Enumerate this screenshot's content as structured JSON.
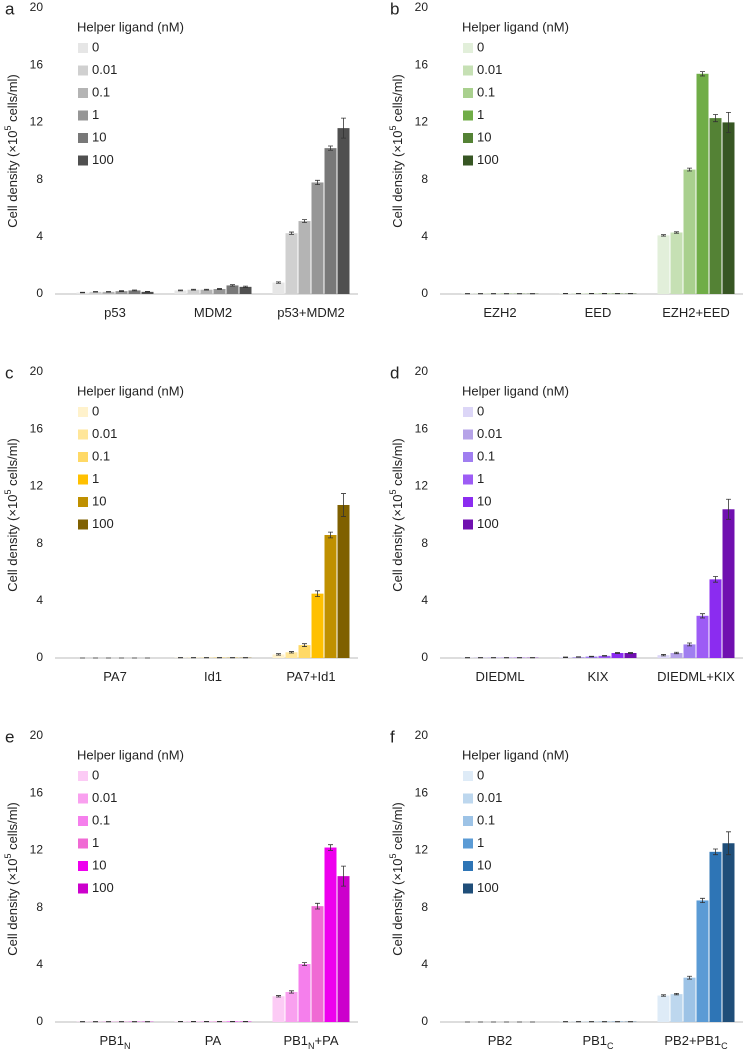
{
  "chart_data": [
    {
      "type": "bar",
      "label": "a",
      "y_label": [
        "Cell density (×10",
        "5",
        " cells/ml)"
      ],
      "legend_title": "Helper ligand (nM)",
      "categories": [
        [
          "p53"
        ],
        [
          "MDM2"
        ],
        [
          "p53+MDM2"
        ]
      ],
      "ylim": [
        0,
        20
      ],
      "yticks": [
        0,
        4,
        8,
        12,
        16,
        20
      ],
      "series": [
        {
          "name": "0",
          "color": "#e6e6e6",
          "values": [
            0.1,
            0.25,
            0.8
          ],
          "errors": [
            0.02,
            0.03,
            0.05
          ]
        },
        {
          "name": "0.01",
          "color": "#d0d0d0",
          "values": [
            0.15,
            0.3,
            4.25
          ],
          "errors": [
            0.02,
            0.03,
            0.08
          ]
        },
        {
          "name": "0.1",
          "color": "#b4b4b4",
          "values": [
            0.15,
            0.3,
            5.1
          ],
          "errors": [
            0.02,
            0.03,
            0.1
          ]
        },
        {
          "name": "1",
          "color": "#969696",
          "values": [
            0.2,
            0.35,
            7.8
          ],
          "errors": [
            0.03,
            0.03,
            0.15
          ]
        },
        {
          "name": "10",
          "color": "#787878",
          "values": [
            0.25,
            0.6,
            10.2
          ],
          "errors": [
            0.03,
            0.05,
            0.15
          ]
        },
        {
          "name": "100",
          "color": "#505050",
          "values": [
            0.15,
            0.5,
            11.6
          ],
          "errors": [
            0.03,
            0.05,
            0.7
          ]
        }
      ]
    },
    {
      "type": "bar",
      "label": "b",
      "y_label": [
        "Cell density (×10",
        "5",
        " cells/ml)"
      ],
      "legend_title": "Helper ligand (nM)",
      "categories": [
        [
          "EZH2"
        ],
        [
          "EED"
        ],
        [
          "EZH2+EED"
        ]
      ],
      "ylim": [
        0,
        20
      ],
      "yticks": [
        0,
        4,
        8,
        12,
        16,
        20
      ],
      "series": [
        {
          "name": "0",
          "color": "#e2efda",
          "values": [
            0.02,
            0.03,
            4.1
          ],
          "errors": [
            0.01,
            0.01,
            0.05
          ]
        },
        {
          "name": "0.01",
          "color": "#c6e0b4",
          "values": [
            0.02,
            0.03,
            4.3
          ],
          "errors": [
            0.01,
            0.01,
            0.05
          ]
        },
        {
          "name": "0.1",
          "color": "#a9d08e",
          "values": [
            0.02,
            0.03,
            8.7
          ],
          "errors": [
            0.01,
            0.01,
            0.1
          ]
        },
        {
          "name": "1",
          "color": "#70ad47",
          "values": [
            0.02,
            0.03,
            15.4
          ],
          "errors": [
            0.01,
            0.01,
            0.15
          ]
        },
        {
          "name": "10",
          "color": "#548235",
          "values": [
            0.02,
            0.03,
            12.3
          ],
          "errors": [
            0.01,
            0.01,
            0.25
          ]
        },
        {
          "name": "100",
          "color": "#375623",
          "values": [
            0.02,
            0.03,
            12.0
          ],
          "errors": [
            0.01,
            0.01,
            0.7
          ]
        }
      ]
    },
    {
      "type": "bar",
      "label": "c",
      "y_label": [
        "Cell density (×10",
        "5",
        " cells/ml)"
      ],
      "legend_title": "Helper ligand (nM)",
      "categories": [
        [
          "PA7"
        ],
        [
          "Id1"
        ],
        [
          "PA7+Id1"
        ]
      ],
      "ylim": [
        0,
        20
      ],
      "yticks": [
        0,
        4,
        8,
        12,
        16,
        20
      ],
      "series": [
        {
          "name": "0",
          "color": "#fff2cc",
          "values": [
            0,
            0.02,
            0.25
          ],
          "errors": [
            0,
            0.01,
            0.05
          ]
        },
        {
          "name": "0.01",
          "color": "#ffe699",
          "values": [
            0,
            0.02,
            0.4
          ],
          "errors": [
            0,
            0.01,
            0.05
          ]
        },
        {
          "name": "0.1",
          "color": "#ffd966",
          "values": [
            0,
            0.02,
            0.9
          ],
          "errors": [
            0,
            0.01,
            0.1
          ]
        },
        {
          "name": "1",
          "color": "#ffc000",
          "values": [
            0,
            0.02,
            4.5
          ],
          "errors": [
            0,
            0.01,
            0.2
          ]
        },
        {
          "name": "10",
          "color": "#bf9000",
          "values": [
            0,
            0.02,
            8.6
          ],
          "errors": [
            0,
            0.01,
            0.2
          ]
        },
        {
          "name": "100",
          "color": "#7f6000",
          "values": [
            0,
            0.02,
            10.7
          ],
          "errors": [
            0,
            0.01,
            0.8
          ]
        }
      ]
    },
    {
      "type": "bar",
      "label": "d",
      "y_label": [
        "Cell density (×10",
        "5",
        " cells/ml)"
      ],
      "legend_title": "Helper ligand (nM)",
      "categories": [
        [
          "DIEDML"
        ],
        [
          "KIX"
        ],
        [
          "DIEDML+KIX"
        ]
      ],
      "ylim": [
        0,
        20
      ],
      "yticks": [
        0,
        4,
        8,
        12,
        16,
        20
      ],
      "series": [
        {
          "name": "0",
          "color": "#dcd6f7",
          "values": [
            0.02,
            0.05,
            0.2
          ],
          "errors": [
            0.01,
            0.02,
            0.05
          ]
        },
        {
          "name": "0.01",
          "color": "#b6a3e8",
          "values": [
            0.02,
            0.07,
            0.35
          ],
          "errors": [
            0.01,
            0.02,
            0.05
          ]
        },
        {
          "name": "0.1",
          "color": "#a07ef0",
          "values": [
            0.02,
            0.1,
            0.95
          ],
          "errors": [
            0.01,
            0.02,
            0.1
          ]
        },
        {
          "name": "1",
          "color": "#9d5cf5",
          "values": [
            0.02,
            0.15,
            2.95
          ],
          "errors": [
            0.01,
            0.02,
            0.15
          ]
        },
        {
          "name": "10",
          "color": "#8b2cf0",
          "values": [
            0.02,
            0.35,
            5.5
          ],
          "errors": [
            0.01,
            0.03,
            0.2
          ]
        },
        {
          "name": "100",
          "color": "#7010b0",
          "values": [
            0.02,
            0.35,
            10.4
          ],
          "errors": [
            0.01,
            0.03,
            0.7
          ]
        }
      ]
    },
    {
      "type": "bar",
      "label": "e",
      "y_label": [
        "Cell density (×10",
        "5",
        " cells/ml)"
      ],
      "legend_title": "Helper ligand (nM)",
      "categories": [
        [
          "PB1",
          "N"
        ],
        [
          "PA"
        ],
        [
          "PB1",
          "N",
          "+PA"
        ]
      ],
      "ylim": [
        0,
        20
      ],
      "yticks": [
        0,
        4,
        8,
        12,
        16,
        20
      ],
      "series": [
        {
          "name": "0",
          "color": "#fccbf5",
          "values": [
            0.02,
            0.03,
            1.8
          ],
          "errors": [
            0.01,
            0.01,
            0.05
          ]
        },
        {
          "name": "0.01",
          "color": "#f9a0ef",
          "values": [
            0.02,
            0.03,
            2.1
          ],
          "errors": [
            0.01,
            0.01,
            0.08
          ]
        },
        {
          "name": "0.1",
          "color": "#f57fec",
          "values": [
            0.02,
            0.03,
            4.05
          ],
          "errors": [
            0.01,
            0.01,
            0.1
          ]
        },
        {
          "name": "1",
          "color": "#f06ad4",
          "values": [
            0.02,
            0.03,
            8.1
          ],
          "errors": [
            0.01,
            0.01,
            0.2
          ]
        },
        {
          "name": "10",
          "color": "#ee00ee",
          "values": [
            0.02,
            0.03,
            12.2
          ],
          "errors": [
            0.01,
            0.01,
            0.2
          ]
        },
        {
          "name": "100",
          "color": "#cc00cc",
          "values": [
            0.02,
            0.03,
            10.2
          ],
          "errors": [
            0.01,
            0.01,
            0.7
          ]
        }
      ]
    },
    {
      "type": "bar",
      "label": "f",
      "y_label": [
        "Cell density (×10",
        "5",
        " cells/ml)"
      ],
      "legend_title": "Helper ligand (nM)",
      "categories": [
        [
          "PB2"
        ],
        [
          "PB1",
          "C"
        ],
        [
          "PB2+PB1",
          "C"
        ]
      ],
      "ylim": [
        0,
        20
      ],
      "yticks": [
        0,
        4,
        8,
        12,
        16,
        20
      ],
      "series": [
        {
          "name": "0",
          "color": "#deebf7",
          "values": [
            0,
            0.02,
            1.85
          ],
          "errors": [
            0,
            0.01,
            0.05
          ]
        },
        {
          "name": "0.01",
          "color": "#bdd7ee",
          "values": [
            0,
            0.02,
            1.95
          ],
          "errors": [
            0,
            0.01,
            0.05
          ]
        },
        {
          "name": "0.1",
          "color": "#9dc3e6",
          "values": [
            0,
            0.02,
            3.1
          ],
          "errors": [
            0,
            0.01,
            0.1
          ]
        },
        {
          "name": "1",
          "color": "#5b9bd5",
          "values": [
            0,
            0.02,
            8.5
          ],
          "errors": [
            0,
            0.01,
            0.15
          ]
        },
        {
          "name": "10",
          "color": "#2e75b6",
          "values": [
            0,
            0.02,
            11.9
          ],
          "errors": [
            0,
            0.01,
            0.2
          ]
        },
        {
          "name": "100",
          "color": "#1f4e79",
          "values": [
            0,
            0.02,
            12.5
          ],
          "errors": [
            0,
            0.01,
            0.8
          ]
        }
      ]
    }
  ]
}
